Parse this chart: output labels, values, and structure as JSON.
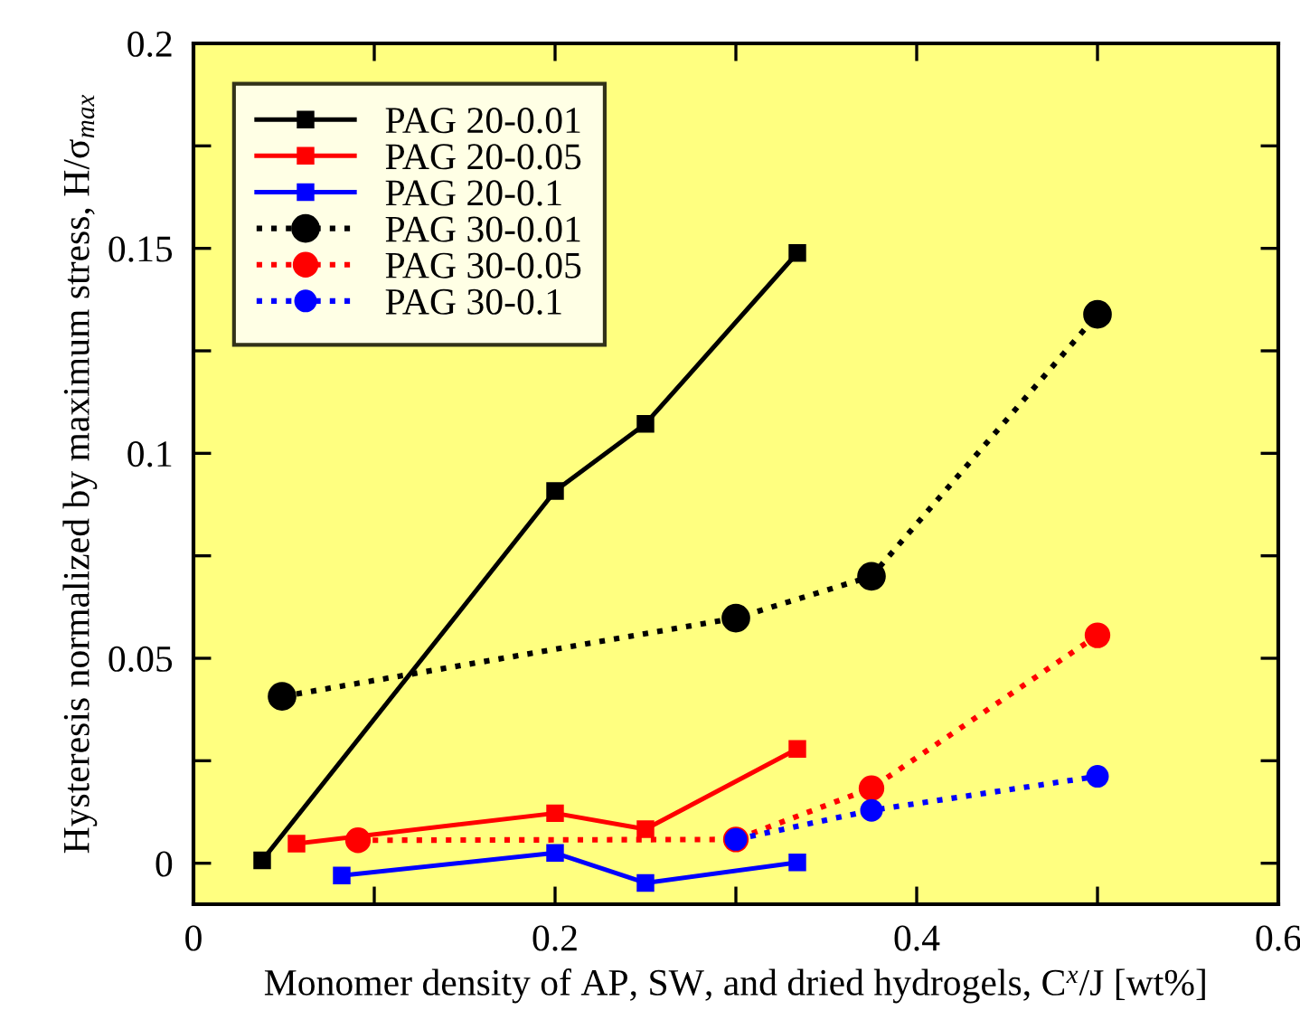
{
  "chart_data": {
    "type": "line",
    "xlabel": "Monomer density of AP, SW, and dried hydrogels, C$^{x}$/J [wt%]",
    "ylabel": "Hysteresis normalized by maximum stress, H/σ$_{max}$",
    "xlim": [
      0,
      0.6
    ],
    "ylim": [
      -0.01,
      0.2
    ],
    "xticks": [
      0,
      {
        "value": 0.1,
        "label": null
      },
      0.2,
      {
        "value": 0.3,
        "label": null
      },
      0.4,
      {
        "value": 0.5,
        "label": null
      },
      0.6
    ],
    "yticks": [
      0,
      {
        "value": 0.025,
        "label": null
      },
      0.05,
      {
        "value": 0.075,
        "label": null
      },
      0.1,
      {
        "value": 0.125,
        "label": null
      },
      0.15,
      {
        "value": 0.175,
        "label": null
      },
      0.2
    ],
    "legend": "top left",
    "grid": false,
    "series": [
      {
        "name": "PAG 20-0.01",
        "color": "#000000",
        "marker": "square",
        "line_style": "solid",
        "x": [
          0.038,
          0.2,
          0.25,
          0.334
        ],
        "values": [
          0.0007,
          0.0908,
          0.1072,
          0.1489
        ]
      },
      {
        "name": "PAG 20-0.05",
        "color": "#ff0000",
        "marker": "square",
        "line_style": "solid",
        "x": [
          0.057,
          0.2,
          0.25,
          0.334
        ],
        "values": [
          0.0048,
          0.0122,
          0.0083,
          0.0279
        ]
      },
      {
        "name": "PAG 20-0.1",
        "color": "#0000ff",
        "marker": "square",
        "line_style": "solid",
        "x": [
          0.082,
          0.2,
          0.25,
          0.334
        ],
        "values": [
          -0.003,
          0.0025,
          -0.0048,
          0.0002
        ]
      },
      {
        "name": "PAG 30-0.01",
        "color": "#000000",
        "marker": "circle",
        "line_style": "dotted",
        "x": [
          0.049,
          0.3,
          0.375,
          0.5
        ],
        "values": [
          0.0407,
          0.0598,
          0.07,
          0.1339
        ]
      },
      {
        "name": "PAG 30-0.05",
        "color": "#ff0000",
        "marker": "circle",
        "line_style": "dotted",
        "x": [
          0.091,
          0.3,
          0.375,
          0.5
        ],
        "values": [
          0.0056,
          0.0058,
          0.0183,
          0.0556
        ]
      },
      {
        "name": "PAG 30-0.1",
        "color": "#0000ff",
        "marker": "circle",
        "line_style": "dotted",
        "x": [
          0.3,
          0.375,
          0.5
        ],
        "values": [
          0.0058,
          0.0129,
          0.0212
        ]
      }
    ]
  }
}
